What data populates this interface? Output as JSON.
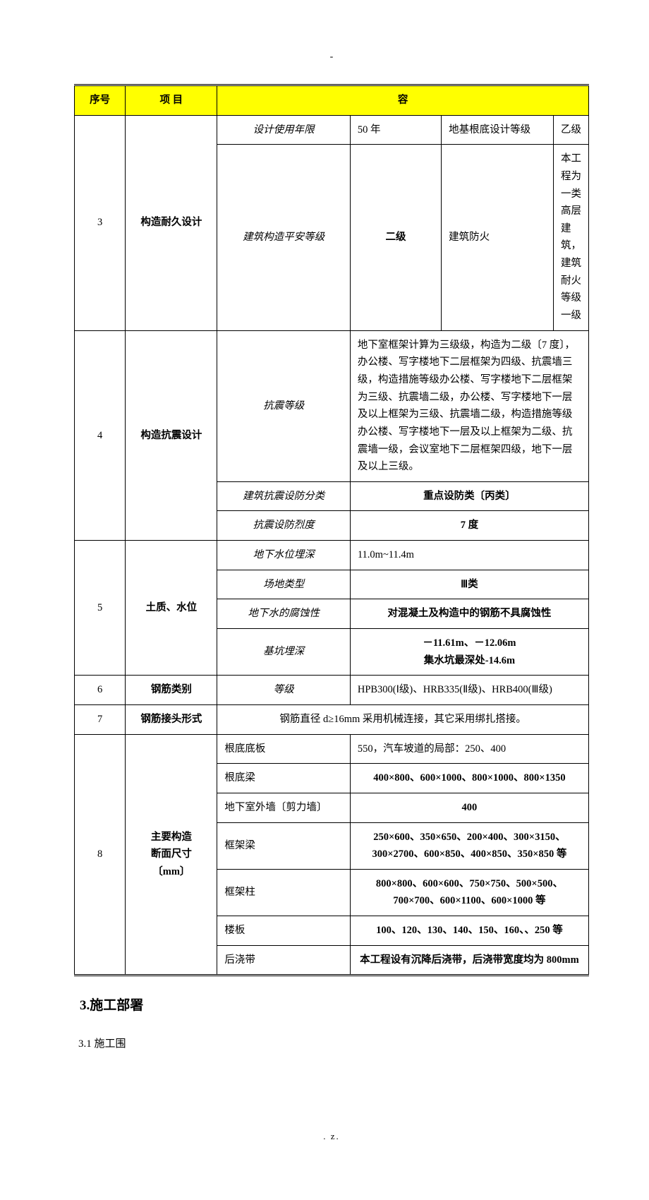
{
  "top_dash": "-",
  "header": {
    "c1": "序号",
    "c2": "项    目",
    "c3": "容"
  },
  "r3": {
    "no": "3",
    "item": "构造耐久设计",
    "a_label": "设计使用年限",
    "a_v1": "50 年",
    "a_v2l": "地基根底设计等级",
    "a_v2r": "乙级",
    "b_label": "建筑构造平安等级",
    "b_v1": "二级",
    "b_v2l": "建筑防火",
    "b_v2r": "本工程为一类高层建筑，建筑耐火等级一级"
  },
  "r4": {
    "no": "4",
    "item": "构造抗震设计",
    "a_label": "抗震等级",
    "a_text": "地下室框架计算为三级级，构造为二级〔7 度〕，办公楼、写字楼地下二层框架为四级、抗震墙三级，构造措施等级办公楼、写字楼地下二层框架为三级、抗震墙二级，办公楼、写字楼地下一层及以上框架为三级、抗震墙二级，构造措施等级办公楼、写字楼地下一层及以上框架为二级、抗震墙一级，会议室地下二层框架四级，地下一层及以上三级。",
    "b_label": "建筑抗震设防分类",
    "b_val": "重点设防类〔丙类〕",
    "c_label": "抗震设防烈度",
    "c_val": "7 度"
  },
  "r5": {
    "no": "5",
    "item": "土质、水位",
    "a_label": "地下水位埋深",
    "a_val": "11.0m~11.4m",
    "b_label": "场地类型",
    "b_val": "Ⅲ类",
    "c_label": "地下水的腐蚀性",
    "c_val": "对混凝土及构造中的钢筋不具腐蚀性",
    "d_label": "基坑埋深",
    "d_val": "－11.61m、－12.06m\n集水坑最深处-14.6m"
  },
  "r6": {
    "no": "6",
    "item": "钢筋类别",
    "label": "等级",
    "val": "HPB300(Ⅰ级)、HRB335(Ⅱ级)、HRB400(Ⅲ级)"
  },
  "r7": {
    "no": "7",
    "item": "钢筋接头形式",
    "val": "钢筋直径 d≥16mm 采用机械连接，其它采用绑扎搭接。"
  },
  "r8": {
    "no": "8",
    "item": "主要构造\n断面尺寸\n〔mm〕",
    "a_label": "根底底板",
    "a_val": "550，汽车坡道的局部：250、400",
    "b_label": "根底梁",
    "b_val": "400×800、600×1000、800×1000、800×1350",
    "c_label": "地下室外墙〔剪力墙〕",
    "c_val": "400",
    "d_label": "框架梁",
    "d_val": "250×600、350×650、200×400、300×3150、300×2700、600×850、400×850、350×850 等",
    "e_label": "框架柱",
    "e_val": "800×800、600×600、750×750、500×500、700×700、600×1100、600×1000 等",
    "f_label": "楼板",
    "f_val": "100、120、130、140、150、160、、250 等",
    "g_label": "后浇带",
    "g_val": "本工程设有沉降后浇带，后浇带宽度均为 800mm"
  },
  "section_title": "3.施工部署",
  "sub_section": "3.1 施工围",
  "footer": ".    z."
}
